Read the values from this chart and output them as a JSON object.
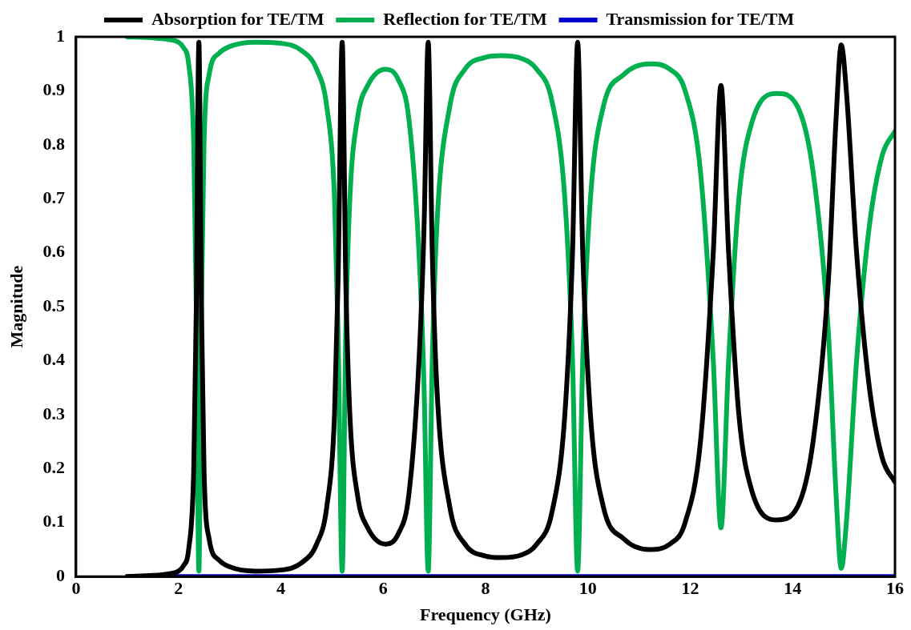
{
  "chart_data": {
    "type": "line",
    "xlabel": "Frequency (GHz)",
    "ylabel": "Magnitude",
    "x": [
      1,
      1.5,
      1.8,
      2.0,
      2.1,
      2.2,
      2.3,
      2.35,
      2.4,
      2.45,
      2.5,
      2.6,
      2.8,
      3.0,
      3.5,
      4.0,
      4.4,
      4.7,
      4.9,
      5.05,
      5.12,
      5.2,
      5.27,
      5.35,
      5.5,
      5.7,
      6.05,
      6.3,
      6.5,
      6.7,
      6.8,
      6.88,
      6.96,
      7.05,
      7.3,
      7.6,
      8.0,
      8.3,
      8.7,
      9.0,
      9.3,
      9.55,
      9.7,
      9.8,
      9.9,
      10.05,
      10.3,
      10.7,
      11.2,
      11.6,
      11.9,
      12.2,
      12.45,
      12.6,
      12.75,
      12.95,
      13.2,
      13.7,
      14.1,
      14.4,
      14.7,
      14.85,
      14.95,
      15.05,
      15.25,
      15.5,
      15.75,
      16
    ],
    "series": [
      {
        "name": "Absorption for TE/TM",
        "color": "#000000",
        "values": [
          0,
          0.002,
          0.005,
          0.01,
          0.02,
          0.05,
          0.2,
          0.5,
          0.99,
          0.5,
          0.2,
          0.07,
          0.03,
          0.018,
          0.01,
          0.012,
          0.025,
          0.06,
          0.13,
          0.3,
          0.55,
          0.99,
          0.55,
          0.3,
          0.15,
          0.09,
          0.06,
          0.08,
          0.15,
          0.4,
          0.65,
          0.99,
          0.6,
          0.35,
          0.13,
          0.06,
          0.038,
          0.035,
          0.04,
          0.06,
          0.12,
          0.3,
          0.6,
          0.99,
          0.6,
          0.3,
          0.13,
          0.07,
          0.05,
          0.06,
          0.1,
          0.25,
          0.6,
          0.91,
          0.6,
          0.3,
          0.16,
          0.105,
          0.13,
          0.25,
          0.55,
          0.85,
          0.985,
          0.9,
          0.6,
          0.35,
          0.22,
          0.175
        ]
      },
      {
        "name": "Reflection for TE/TM",
        "color": "#00b050",
        "values": [
          1,
          0.998,
          0.995,
          0.99,
          0.98,
          0.95,
          0.8,
          0.5,
          0.01,
          0.5,
          0.8,
          0.93,
          0.97,
          0.982,
          0.99,
          0.988,
          0.975,
          0.94,
          0.87,
          0.7,
          0.45,
          0.01,
          0.45,
          0.7,
          0.85,
          0.91,
          0.94,
          0.92,
          0.85,
          0.6,
          0.35,
          0.01,
          0.4,
          0.65,
          0.87,
          0.94,
          0.962,
          0.965,
          0.96,
          0.94,
          0.88,
          0.7,
          0.4,
          0.01,
          0.4,
          0.7,
          0.87,
          0.93,
          0.95,
          0.94,
          0.9,
          0.75,
          0.4,
          0.09,
          0.4,
          0.7,
          0.84,
          0.895,
          0.87,
          0.75,
          0.45,
          0.15,
          0.015,
          0.1,
          0.4,
          0.65,
          0.78,
          0.825
        ]
      },
      {
        "name": "Transmission for TE/TM",
        "color": "#0000cc",
        "x": [
          1,
          16
        ],
        "values": [
          0,
          0
        ]
      }
    ],
    "xlim": [
      0,
      16
    ],
    "xticks": [
      0,
      2,
      4,
      6,
      8,
      10,
      12,
      14,
      16
    ],
    "ylim": [
      0,
      1
    ],
    "yticks": [
      0,
      0.1,
      0.2,
      0.3,
      0.4,
      0.5,
      0.6,
      0.7,
      0.8,
      0.9,
      1
    ],
    "grid": false,
    "legend": "top",
    "marker": "none",
    "line_style": "solid"
  }
}
